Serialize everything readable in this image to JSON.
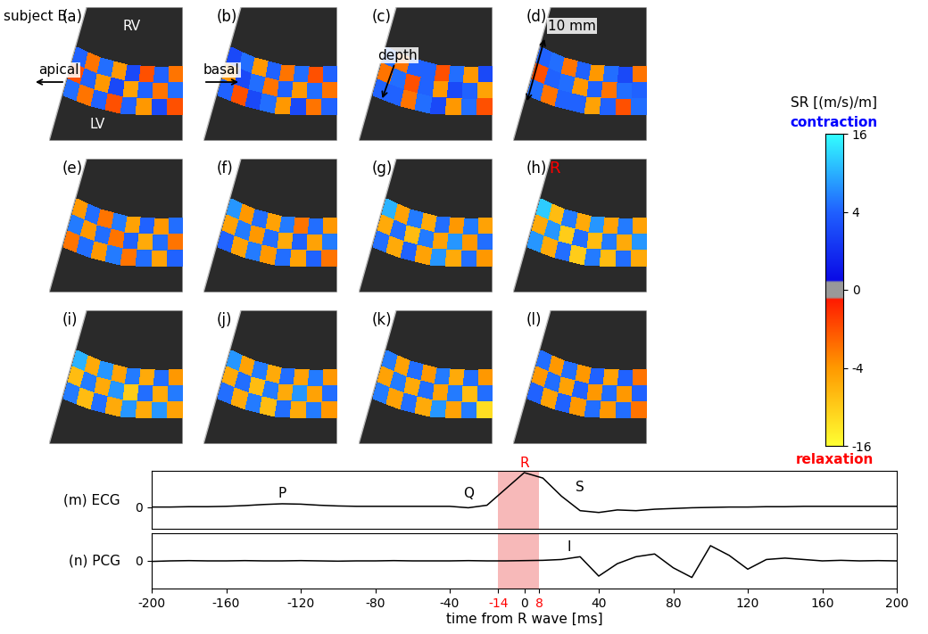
{
  "title": "subject B",
  "colorbar": {
    "label": "SR [(m/s)/m]",
    "range": [
      -16,
      16
    ],
    "ticks": [
      -16,
      -4,
      0,
      4,
      16
    ],
    "annotations": [
      {
        "text": "contraction",
        "color": "blue"
      },
      {
        "text": "relaxation",
        "color": "red"
      }
    ]
  },
  "chart_data": [
    {
      "type": "heatmap",
      "title": "(a)",
      "cells": [
        [
          4,
          -3,
          5,
          -4,
          3,
          -2,
          4,
          -3
        ],
        [
          -2,
          4,
          -4,
          3,
          -5,
          4,
          -3,
          5
        ],
        [
          5,
          -3,
          4,
          -2,
          4,
          -4,
          3,
          -2
        ]
      ],
      "annotations": [
        {
          "text": "RV",
          "color": "white"
        },
        {
          "text": "LV",
          "color": "white"
        },
        {
          "text": "apical"
        }
      ]
    },
    {
      "type": "heatmap",
      "title": "(b)",
      "cells": [
        [
          3,
          5,
          -4,
          4,
          -3,
          5,
          -2,
          4
        ],
        [
          -4,
          3,
          5,
          -3,
          4,
          -4,
          5,
          -3
        ],
        [
          4,
          -2,
          3,
          5,
          -4,
          3,
          -3,
          4
        ]
      ],
      "annotations": [
        {
          "text": "basal"
        }
      ]
    },
    {
      "type": "heatmap",
      "title": "(c)",
      "cells": [
        [
          5,
          -3,
          4,
          4,
          -2,
          5,
          -4,
          3
        ],
        [
          -3,
          5,
          -2,
          4,
          -4,
          3,
          4,
          -5
        ],
        [
          4,
          4,
          -3,
          5,
          3,
          -4,
          5,
          -2
        ]
      ],
      "annotations": [
        {
          "text": "depth"
        }
      ]
    },
    {
      "type": "heatmap",
      "title": "(d)",
      "cells": [
        [
          4,
          5,
          -3,
          4,
          -4,
          5,
          3,
          -3
        ],
        [
          -2,
          4,
          5,
          -4,
          4,
          -3,
          5,
          4
        ],
        [
          5,
          -3,
          4,
          4,
          -5,
          4,
          -2,
          5
        ]
      ],
      "annotations": [
        {
          "text": "10 mm"
        }
      ]
    },
    {
      "type": "heatmap",
      "title": "(e)",
      "cells": [
        [
          -4,
          5,
          -3,
          6,
          -5,
          4,
          -4,
          5
        ],
        [
          6,
          -4,
          5,
          -3,
          4,
          -6,
          5,
          -3
        ],
        [
          -3,
          5,
          -4,
          6,
          -3,
          5,
          -5,
          4
        ]
      ]
    },
    {
      "type": "heatmap",
      "title": "(f)",
      "cells": [
        [
          8,
          -4,
          5,
          -5,
          6,
          -3,
          5,
          -4
        ],
        [
          -5,
          6,
          -4,
          5,
          -6,
          4,
          -5,
          6
        ],
        [
          4,
          -5,
          6,
          -4,
          5,
          -5,
          4,
          -3
        ]
      ]
    },
    {
      "type": "heatmap",
      "title": "(g)",
      "cells": [
        [
          10,
          -5,
          6,
          -6,
          5,
          -4,
          6,
          -5
        ],
        [
          -6,
          5,
          -8,
          6,
          -5,
          8,
          -4,
          5
        ],
        [
          5,
          -6,
          4,
          -5,
          8,
          -6,
          5,
          -4
        ]
      ]
    },
    {
      "type": "heatmap",
      "title": "(h)",
      "cells": [
        [
          12,
          -8,
          6,
          -6,
          8,
          -5,
          6,
          -5
        ],
        [
          -6,
          8,
          -10,
          5,
          -8,
          6,
          -6,
          8
        ],
        [
          8,
          -6,
          5,
          -10,
          6,
          -8,
          5,
          -6
        ]
      ],
      "annotations": [
        {
          "text": "R",
          "color": "red"
        }
      ]
    },
    {
      "type": "heatmap",
      "title": "(i)",
      "cells": [
        [
          10,
          -6,
          8,
          -5,
          6,
          -6,
          5,
          -4
        ],
        [
          -8,
          6,
          -6,
          8,
          -10,
          5,
          -6,
          6
        ],
        [
          6,
          -8,
          5,
          -6,
          8,
          -6,
          8,
          -5
        ]
      ]
    },
    {
      "type": "heatmap",
      "title": "(j)",
      "cells": [
        [
          8,
          -5,
          6,
          -6,
          5,
          -5,
          6,
          -4
        ],
        [
          -6,
          5,
          -8,
          6,
          -6,
          8,
          -5,
          5
        ],
        [
          5,
          -6,
          6,
          -8,
          5,
          -6,
          6,
          -4
        ]
      ]
    },
    {
      "type": "heatmap",
      "title": "(k)",
      "cells": [
        [
          6,
          -5,
          5,
          -4,
          6,
          -6,
          5,
          -4
        ],
        [
          -5,
          6,
          -6,
          5,
          -5,
          6,
          -8,
          5
        ],
        [
          6,
          -5,
          5,
          -6,
          8,
          -5,
          6,
          -12
        ]
      ]
    },
    {
      "type": "heatmap",
      "title": "(l)",
      "cells": [
        [
          5,
          -4,
          5,
          -4,
          4,
          -5,
          4,
          -3
        ],
        [
          -4,
          5,
          -5,
          4,
          -4,
          5,
          -4,
          4
        ],
        [
          4,
          -5,
          4,
          -4,
          5,
          -4,
          5,
          -3
        ]
      ]
    },
    {
      "type": "line",
      "y_label": "(m) ECG",
      "color": "black",
      "tick_labels": "y",
      "x": [
        -200,
        -190,
        -180,
        -170,
        -160,
        -150,
        -140,
        -130,
        -120,
        -110,
        -100,
        -90,
        -80,
        -70,
        -60,
        -50,
        -40,
        -30,
        -20,
        -10,
        0,
        10,
        20,
        30,
        40,
        50,
        60,
        70,
        80,
        90,
        100,
        110,
        120,
        130,
        140,
        150,
        160,
        170,
        180,
        190,
        200
      ],
      "values": [
        0.0,
        0.0,
        0.01,
        0.01,
        0.02,
        0.04,
        0.07,
        0.09,
        0.08,
        0.05,
        0.03,
        0.02,
        0.02,
        0.02,
        0.02,
        0.02,
        0.02,
        -0.02,
        0.05,
        0.5,
        0.95,
        0.8,
        0.3,
        -0.1,
        -0.15,
        -0.08,
        -0.1,
        -0.06,
        -0.04,
        -0.02,
        -0.01,
        0.0,
        0.0,
        0.01,
        0.01,
        0.02,
        0.02,
        0.02,
        0.02,
        0.02,
        0.02
      ],
      "xlim": [
        -200,
        200
      ],
      "ylim": [
        -0.6,
        1.0
      ],
      "yticks": [
        0
      ],
      "shaded_span": [
        -14,
        8
      ],
      "annotations": [
        {
          "text": "P",
          "x": -130,
          "y": 0.18
        },
        {
          "text": "Q",
          "x": -30,
          "y": 0.2
        },
        {
          "text": "R",
          "x": 0,
          "y": 1.02,
          "color": "red"
        },
        {
          "text": "S",
          "x": 30,
          "y": 0.35
        }
      ]
    },
    {
      "type": "line",
      "y_label": "(n) PCG",
      "x_label": "time from R wave [ms]",
      "color": "black",
      "x": [
        -200,
        -190,
        -180,
        -170,
        -160,
        -150,
        -140,
        -130,
        -120,
        -110,
        -100,
        -90,
        -80,
        -70,
        -60,
        -50,
        -40,
        -30,
        -20,
        -10,
        0,
        10,
        20,
        30,
        40,
        50,
        60,
        70,
        80,
        90,
        100,
        110,
        120,
        130,
        140,
        150,
        160,
        170,
        180,
        190,
        200
      ],
      "values": [
        -0.02,
        0.0,
        0.01,
        0.0,
        0.0,
        0.01,
        0.0,
        0.0,
        0.01,
        0.0,
        -0.01,
        0.0,
        0.0,
        0.01,
        0.0,
        0.0,
        0.0,
        0.01,
        0.0,
        0.0,
        0.01,
        0.02,
        0.05,
        0.15,
        -0.55,
        -0.1,
        0.15,
        0.25,
        -0.25,
        -0.6,
        0.55,
        0.2,
        -0.3,
        0.05,
        0.1,
        0.05,
        0.0,
        0.02,
        0.0,
        0.01,
        0.0
      ],
      "xlim": [
        -200,
        200
      ],
      "ylim": [
        -1,
        1
      ],
      "yticks": [
        0
      ],
      "xticks": [
        -200,
        -160,
        -120,
        -80,
        -40,
        -14,
        0,
        8,
        40,
        80,
        120,
        160,
        200
      ],
      "shaded_span": [
        -14,
        8
      ],
      "annotations": [
        {
          "text": "I",
          "x": 24,
          "y": 0.25
        }
      ]
    }
  ]
}
